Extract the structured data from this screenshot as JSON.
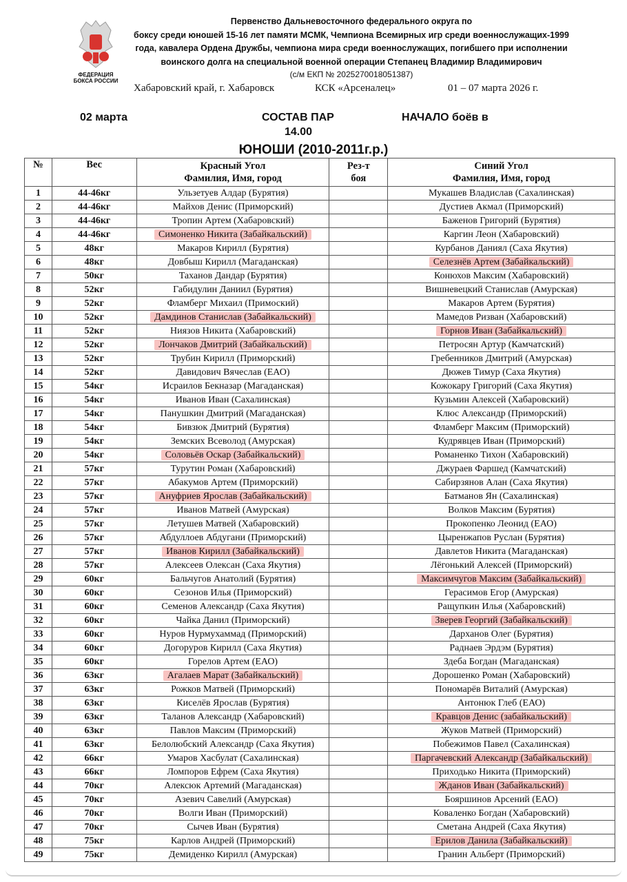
{
  "header": {
    "logo_text": [
      "ФЕДЕРАЦИЯ",
      "БОКСА РОССИИ"
    ],
    "title_lines": [
      "Первенство Дальневосточного федерального округа по",
      "боксу среди юношей 15-16 лет памяти МСМК, Чемпиона Всемирных игр среди военнослужащих-1999",
      "года, кавалера Ордена Дружбы, чемпиона мира среди военнослужащих, погибшего при исполнении",
      "воинского долга на специальной военной операции Степанец Владимир Владимирович"
    ],
    "ekp": "(с/м ЕКП № 2025270018051387)",
    "location": "Хабаровский край, г. Хабаровск",
    "venue": "КСК «Арсеналец»",
    "dates": "01 – 07 марта 2026 г.",
    "day": "02 марта",
    "doc_title": "СОСТАВ ПАР",
    "start_label": "НАЧАЛО боёв в",
    "start_time": "14.00",
    "group": "ЮНОШИ (2010-2011г.р.)"
  },
  "table": {
    "columns": {
      "num": "№",
      "weight": "Вес",
      "red_1": "Красный Угол",
      "red_2": "Фамилия, Имя, город",
      "result_1": "Рез-т",
      "result_2": "боя",
      "blue_1": "Синий Угол",
      "blue_2": "Фамилия, Имя, город"
    },
    "highlight_color": "#f8c3c1",
    "rows": [
      {
        "n": "1",
        "w": "44-46кг",
        "red": "Ульзетуев Алдар (Бурятия)",
        "blue": "Мукашев Владислав (Сахалинская)"
      },
      {
        "n": "2",
        "w": "44-46кг",
        "red": "Майхов Денис (Приморский)",
        "blue": "Дустиев Акмал (Приморский)"
      },
      {
        "n": "3",
        "w": "44-46кг",
        "red": "Тропин Артем (Хабаровский)",
        "blue": "Баженов Григорий (Бурятия)"
      },
      {
        "n": "4",
        "w": "44-46кг",
        "red": "Симоненко Никита (Забайкальский)",
        "blue": "Каргин Леон (Хабаровский)",
        "hl": "red"
      },
      {
        "n": "5",
        "w": "48кг",
        "red": "Макаров Кирилл (Бурятия)",
        "blue": "Курбанов Даниял (Саха Якутия)"
      },
      {
        "n": "6",
        "w": "48кг",
        "red": "Довбыш Кирилл (Магаданская)",
        "blue": "Селезнёв Артем (Забайкальский)",
        "hl": "blue"
      },
      {
        "n": "7",
        "w": "50кг",
        "red": "Таханов Дандар (Бурятия)",
        "blue": "Конюхов Максим (Хабаровский)"
      },
      {
        "n": "8",
        "w": "52кг",
        "red": "Габидулин Даниил (Бурятия)",
        "blue": "Вишневецкий Станислав (Амурская)"
      },
      {
        "n": "9",
        "w": "52кг",
        "red": "Фламберг Михаил (Примоский)",
        "blue": "Макаров Артем (Бурятия)"
      },
      {
        "n": "10",
        "w": "52кг",
        "red": "Дамдинов Станислав (Забайкальский)",
        "blue": "Мамедов Ризван (Хабаровский)",
        "hl": "red"
      },
      {
        "n": "11",
        "w": "52кг",
        "red": "Ниязов Никита (Хабаровский)",
        "blue": "Горнов Иван (Забайкальский)",
        "hl": "blue"
      },
      {
        "n": "12",
        "w": "52кг",
        "red": "Лончаков Дмитрий (Забайкальский)",
        "blue": "Петросян Артур (Камчатский)",
        "hl": "red"
      },
      {
        "n": "13",
        "w": "52кг",
        "red": "Трубин Кирилл (Приморский)",
        "blue": "Гребенников Дмитрий (Амурская)"
      },
      {
        "n": "14",
        "w": "52кг",
        "red": "Давидович Вячеслав (ЕАО)",
        "blue": "Дюжев Тимур (Саха Якутия)"
      },
      {
        "n": "15",
        "w": "54кг",
        "red": "Исраилов Бекназар (Магаданская)",
        "blue": "Кожокару Григорий (Саха Якутия)"
      },
      {
        "n": "16",
        "w": "54кг",
        "red": "Иванов Иван (Сахалинская)",
        "blue": "Кузьмин Алексей (Хабаровский)"
      },
      {
        "n": "17",
        "w": "54кг",
        "red": "Панушкин Дмитрий (Магаданская)",
        "blue": "Клюс Александр (Приморский)"
      },
      {
        "n": "18",
        "w": "54кг",
        "red": "Бивзюк Дмитрий (Бурятия)",
        "blue": "Фламберг Максим (Приморский)"
      },
      {
        "n": "19",
        "w": "54кг",
        "red": "Земских Всеволод (Амурская)",
        "blue": "Кудрявцев Иван (Приморский)"
      },
      {
        "n": "20",
        "w": "54кг",
        "red": "Соловьёв Оскар (Забайкальский)",
        "blue": "Романенко Тихон (Хабаровский)",
        "hl": "red"
      },
      {
        "n": "21",
        "w": "57кг",
        "red": "Турутин Роман (Хабаровский)",
        "blue": "Джураев Фаршед (Камчатский)"
      },
      {
        "n": "22",
        "w": "57кг",
        "red": "Абакумов Артем (Приморский)",
        "blue": "Сабирзянов Алан (Саха Якутия)"
      },
      {
        "n": "23",
        "w": "57кг",
        "red": "Ануфриев Ярослав (Забайкальский)",
        "blue": "Батманов Ян (Сахалинская)",
        "hl": "red"
      },
      {
        "n": "24",
        "w": "57кг",
        "red": "Иванов Матвей (Амурская)",
        "blue": "Волков Максим (Бурятия)"
      },
      {
        "n": "25",
        "w": "57кг",
        "red": "Летушев Матвей (Хабаровский)",
        "blue": "Прокопенко Леонид (ЕАО)"
      },
      {
        "n": "26",
        "w": "57кг",
        "red": "Абдуллоев Абдугани (Приморский)",
        "blue": "Цыренжапов Руслан (Бурятия)"
      },
      {
        "n": "27",
        "w": "57кг",
        "red": "Иванов Кирилл (Забайкальский)",
        "blue": "Давлетов Никита (Магаданская)",
        "hl": "red"
      },
      {
        "n": "28",
        "w": "57кг",
        "red": "Алексеев Олексан (Саха Якутия)",
        "blue": "Лёгонький Алексей (Приморский)"
      },
      {
        "n": "29",
        "w": "60кг",
        "red": "Бальчугов Анатолий (Бурятия)",
        "blue": "Максимчугов Максим (Забайкальский)",
        "hl": "blue"
      },
      {
        "n": "30",
        "w": "60кг",
        "red": "Сезонов Илья (Приморский)",
        "blue": "Герасимов Егор (Амурская)"
      },
      {
        "n": "31",
        "w": "60кг",
        "red": "Семенов Александр (Саха Якутия)",
        "blue": "Ращупкин Илья (Хабаровский)"
      },
      {
        "n": "32",
        "w": "60кг",
        "red": "Чайка Данил (Приморский)",
        "blue": "Зверев Георгий (Забайкальский)",
        "hl": "blue"
      },
      {
        "n": "33",
        "w": "60кг",
        "red": "Нуров Нурмухаммад (Приморский)",
        "blue": "Дарханов Олег (Бурятия)"
      },
      {
        "n": "34",
        "w": "60кг",
        "red": "Догоруров Кирилл (Саха Якутия)",
        "blue": "Раднаев Эрдэм (Бурятия)"
      },
      {
        "n": "35",
        "w": "60кг",
        "red": "Горелов Артем (ЕАО)",
        "blue": "Здеба Богдан (Магаданская)"
      },
      {
        "n": "36",
        "w": "63кг",
        "red": "Агалаев Марат (Забайкальский)",
        "blue": "Дорошенко Роман (Хабаровский)",
        "hl": "red"
      },
      {
        "n": "37",
        "w": "63кг",
        "red": "Рожков Матвей (Приморский)",
        "blue": "Пономарёв Виталий (Амурская)"
      },
      {
        "n": "38",
        "w": "63кг",
        "red": "Киселёв Ярослав (Бурятия)",
        "blue": "Антонюк Глеб (ЕАО)"
      },
      {
        "n": "39",
        "w": "63кг",
        "red": "Таланов Александр (Хабаровский)",
        "blue": "Кравцов Денис (забайкальский)",
        "hl": "blue"
      },
      {
        "n": "40",
        "w": "63кг",
        "red": "Павлов Максим (Приморский)",
        "blue": "Жуков Матвей (Приморский)"
      },
      {
        "n": "41",
        "w": "63кг",
        "red": "Белолюбский Александр (Саха Якутия)",
        "blue": "Побежимов Павел (Сахалинская)"
      },
      {
        "n": "42",
        "w": "66кг",
        "red": "Умаров Хасбулат (Сахалинская)",
        "blue": "Паргачевский Александр (Забайкальский)",
        "hl": "blue"
      },
      {
        "n": "43",
        "w": "66кг",
        "red": "Ломпоров Ефрем (Саха Якутия)",
        "blue": "Приходько Никита (Приморский)"
      },
      {
        "n": "44",
        "w": "70кг",
        "red": "Алексюк Артемий (Магаданская)",
        "blue": "Жданов Иван (Забайкальский)",
        "hl": "blue"
      },
      {
        "n": "45",
        "w": "70кг",
        "red": "Азевич Савелий (Амурская)",
        "blue": "Бояршинов Арсений (ЕАО)"
      },
      {
        "n": "46",
        "w": "70кг",
        "red": "Волги Иван (Приморский)",
        "blue": "Коваленко Богдан (Хабаровский)"
      },
      {
        "n": "47",
        "w": "70кг",
        "red": "Сычев Иван (Бурятия)",
        "blue": "Сметана Андрей (Саха Якутия)"
      },
      {
        "n": "48",
        "w": "75кг",
        "red": "Карлов Андрей (Приморский)",
        "blue": "Ерилов Данила (Забайкальский)",
        "hl": "blue"
      },
      {
        "n": "49",
        "w": "75кг",
        "red": "Демиденко Кирилл (Амурская)",
        "blue": "Гранин Альберт (Приморский)"
      }
    ]
  }
}
